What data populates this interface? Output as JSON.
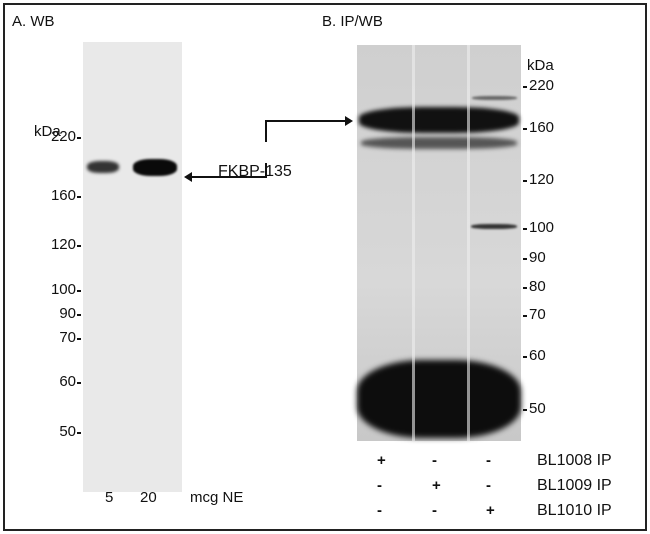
{
  "panel_a": {
    "title": "A. WB",
    "unit": "kDa",
    "markers": [
      "220",
      "160",
      "120",
      "100",
      "90",
      "70",
      "60",
      "50"
    ],
    "lanes": [
      "5",
      "20"
    ],
    "lane_unit": "mcg NE"
  },
  "panel_b": {
    "title": "B. IP/WB",
    "unit": "kDa",
    "markers": [
      "220",
      "160",
      "120",
      "100",
      "90",
      "80",
      "70",
      "60",
      "50"
    ],
    "rows": [
      {
        "label": "BL1008 IP",
        "signs": [
          "+",
          "-",
          "-"
        ]
      },
      {
        "label": "BL1009 IP",
        "signs": [
          "-",
          "+",
          "-"
        ]
      },
      {
        "label": "BL1010 IP",
        "signs": [
          "-",
          "-",
          "+"
        ]
      }
    ]
  },
  "annotation": {
    "label": "FKBP-135"
  }
}
